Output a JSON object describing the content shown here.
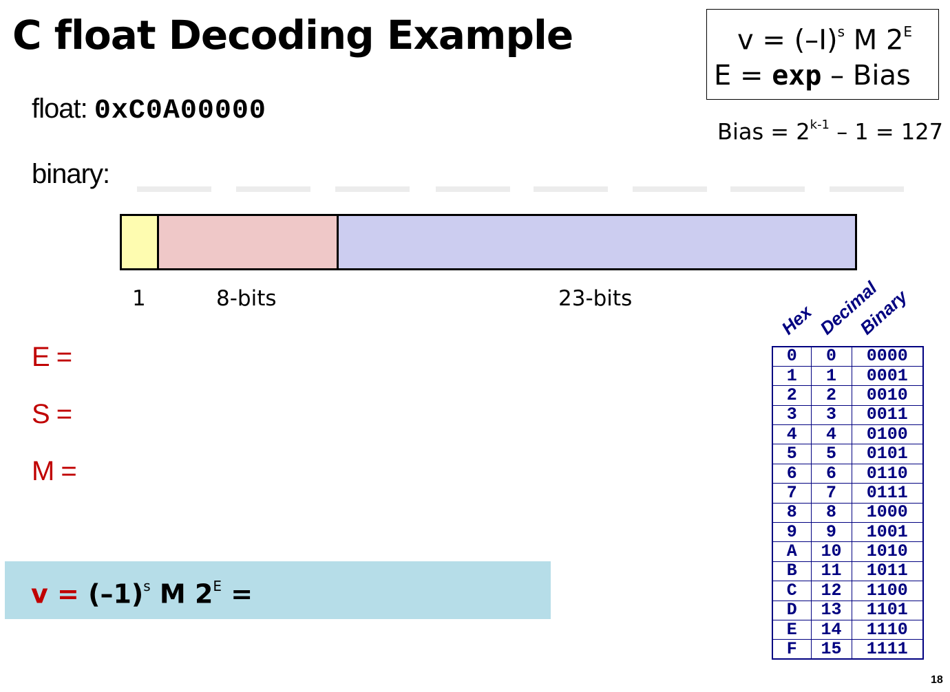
{
  "slide": {
    "title": "C float Decoding Example",
    "page_number": "18"
  },
  "formula_box": {
    "v_lhs": "v = (–",
    "v_one": "I",
    "v_close": ")",
    "v_sign_sup": "s",
    "v_rest": " M 2",
    "v_exp_sup": "E",
    "e_lhs": "E  =  ",
    "e_exp": "exp",
    "e_rest": " – Bias"
  },
  "bias": {
    "lhs": "Bias = 2",
    "sup": "k-1",
    "rhs": " – 1 = 127"
  },
  "float_line": {
    "label": "float: ",
    "hex": "0xC0A00000"
  },
  "binary_label": "binary:",
  "field_labels": {
    "sign": "1",
    "exp": "8-bits",
    "frac": "23-bits"
  },
  "vars": {
    "e": "E =",
    "s": "S =",
    "m": "M ="
  },
  "result": {
    "v": "v = ",
    "paren": "(–1)",
    "s_sup": "s",
    "m2": " M 2",
    "e_sup": "E",
    "eq": " ="
  },
  "table": {
    "headers": [
      "Hex",
      "Decimal",
      "Binary"
    ],
    "rows": [
      [
        "0",
        "0",
        "0000"
      ],
      [
        "1",
        "1",
        "0001"
      ],
      [
        "2",
        "2",
        "0010"
      ],
      [
        "3",
        "3",
        "0011"
      ],
      [
        "4",
        "4",
        "0100"
      ],
      [
        "5",
        "5",
        "0101"
      ],
      [
        "6",
        "6",
        "0110"
      ],
      [
        "7",
        "7",
        "0111"
      ],
      [
        "8",
        "8",
        "1000"
      ],
      [
        "9",
        "9",
        "1001"
      ],
      [
        "A",
        "10",
        "1010"
      ],
      [
        "B",
        "11",
        "1011"
      ],
      [
        "C",
        "12",
        "1100"
      ],
      [
        "D",
        "13",
        "1101"
      ],
      [
        "E",
        "14",
        "1110"
      ],
      [
        "F",
        "15",
        "1111"
      ]
    ]
  },
  "colors": {
    "sign_field": "#fefcb0",
    "exp_field": "#efc8c8",
    "frac_field": "#cccdf0",
    "accent_red": "#c00000",
    "table_navy": "#000080",
    "result_bg": "#b6dde8"
  }
}
